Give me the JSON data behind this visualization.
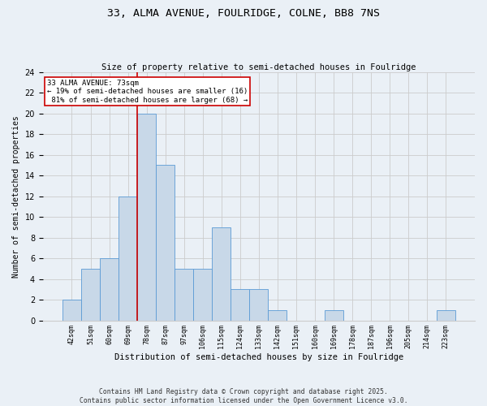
{
  "title_line1": "33, ALMA AVENUE, FOULRIDGE, COLNE, BB8 7NS",
  "title_line2": "Size of property relative to semi-detached houses in Foulridge",
  "xlabel": "Distribution of semi-detached houses by size in Foulridge",
  "ylabel": "Number of semi-detached properties",
  "bar_labels": [
    "42sqm",
    "51sqm",
    "60sqm",
    "69sqm",
    "78sqm",
    "87sqm",
    "97sqm",
    "106sqm",
    "115sqm",
    "124sqm",
    "133sqm",
    "142sqm",
    "151sqm",
    "160sqm",
    "169sqm",
    "178sqm",
    "187sqm",
    "196sqm",
    "205sqm",
    "214sqm",
    "223sqm"
  ],
  "bar_values": [
    2,
    5,
    6,
    12,
    20,
    15,
    5,
    5,
    9,
    3,
    3,
    1,
    0,
    0,
    1,
    0,
    0,
    0,
    0,
    0,
    1
  ],
  "bar_color": "#c8d8e8",
  "bar_edge_color": "#5b9bd5",
  "property_label": "33 ALMA AVENUE: 73sqm",
  "pct_smaller": 19,
  "n_smaller": 16,
  "pct_larger": 81,
  "n_larger": 68,
  "vline_color": "#cc0000",
  "vline_bin_index": 3.5,
  "annotation_box_color": "#cc0000",
  "ylim": [
    0,
    24
  ],
  "yticks": [
    0,
    2,
    4,
    6,
    8,
    10,
    12,
    14,
    16,
    18,
    20,
    22,
    24
  ],
  "grid_color": "#cccccc",
  "background_color": "#eaf0f6",
  "footer_text": "Contains HM Land Registry data © Crown copyright and database right 2025.\nContains public sector information licensed under the Open Government Licence v3.0."
}
